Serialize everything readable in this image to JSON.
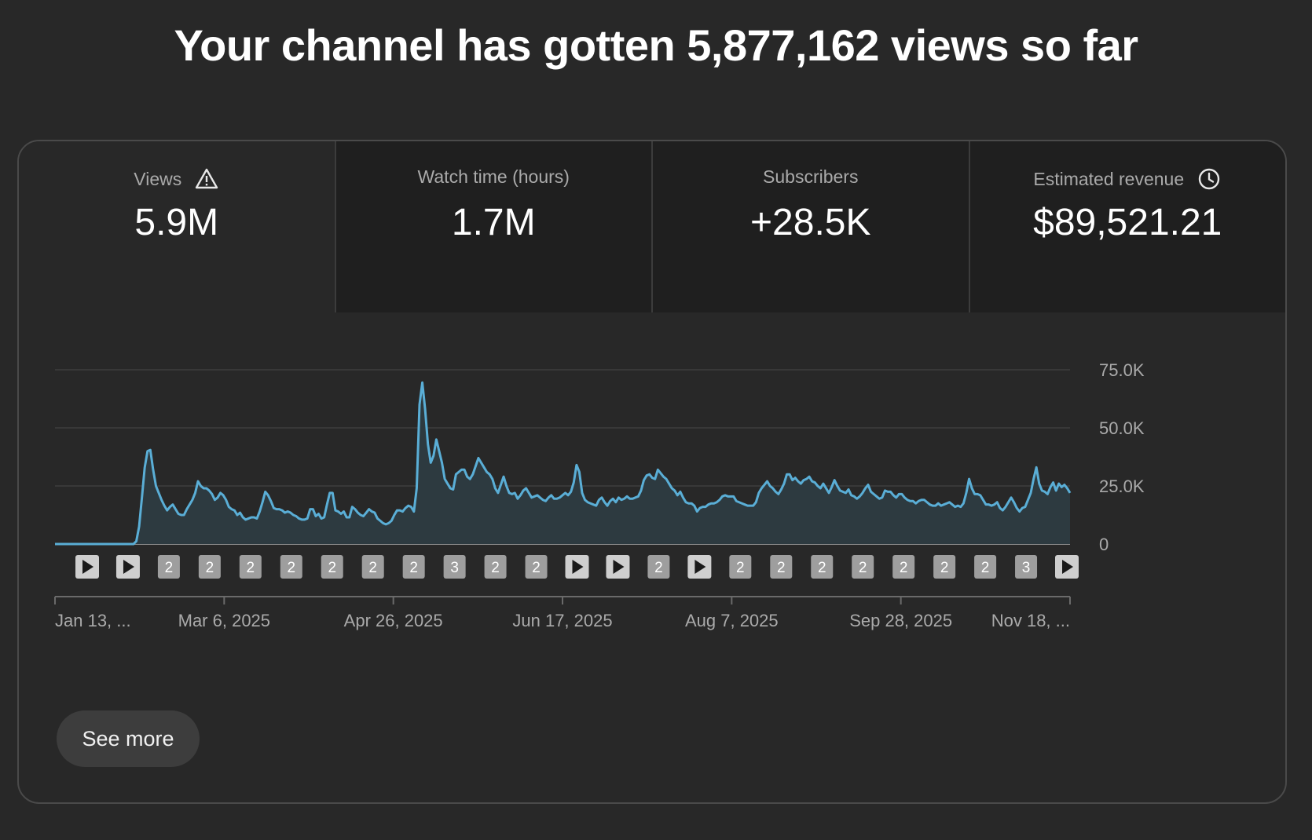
{
  "headline": "Your channel has gotten 5,877,162 views so far",
  "tabs": [
    {
      "label": "Views",
      "value": "5.9M",
      "icon": "warning-icon",
      "selected": true
    },
    {
      "label": "Watch time (hours)",
      "value": "1.7M",
      "icon": null,
      "selected": false
    },
    {
      "label": "Subscribers",
      "value": "+28.5K",
      "icon": null,
      "selected": false
    },
    {
      "label": "Estimated revenue",
      "value": "$89,521.21",
      "icon": "clock-icon",
      "selected": false
    }
  ],
  "see_more_label": "See more",
  "colors": {
    "background": "#282828",
    "line": "#5aaed6",
    "area": "#2d3a40",
    "grid": "#3e3e3e",
    "marker": "#9e9e9e"
  },
  "chart_data": {
    "type": "area",
    "series": [
      {
        "values": [
          0,
          0,
          0,
          0,
          0,
          0,
          0,
          0,
          0,
          0,
          0,
          0,
          0,
          0,
          0,
          0,
          0,
          0,
          0,
          0,
          0,
          0,
          0,
          0,
          0,
          0,
          0,
          0,
          0,
          1200,
          7500,
          20000,
          33000,
          40000,
          40500,
          32000,
          25000,
          22000,
          19000,
          16500,
          14500,
          16000,
          17000,
          15000,
          13000,
          12500,
          12500,
          15000,
          17000,
          19000,
          22000,
          27000,
          25000,
          24000,
          24000,
          23000,
          21500,
          19000,
          20000,
          22000,
          21000,
          19000,
          16000,
          15000,
          14500,
          12500,
          13500,
          11500,
          10500,
          11000,
          11500,
          11500,
          11000,
          14000,
          18000,
          22500,
          21000,
          18500,
          15500,
          15000,
          15000,
          14500,
          13500,
          14000,
          13500,
          12500,
          12000,
          11000,
          10500,
          10500,
          11000,
          15000,
          15000,
          12000,
          13000,
          11000,
          11500,
          17000,
          22000,
          22000,
          14500,
          14000,
          13000,
          14000,
          11500,
          11500,
          16000,
          15000,
          13500,
          12500,
          12000,
          13500,
          15000,
          14000,
          13500,
          11000,
          10000,
          9000,
          8500,
          9000,
          10000,
          12500,
          14500,
          14500,
          14000,
          15500,
          16500,
          16000,
          14000,
          24000,
          60000,
          69500,
          58000,
          43000,
          35000,
          38000,
          45000,
          40000,
          35000,
          28000,
          26000,
          24000,
          23500,
          30000,
          31000,
          32000,
          32000,
          29000,
          28000,
          30000,
          33500,
          37000,
          35000,
          33000,
          31000,
          30000,
          28000,
          24000,
          22000,
          25500,
          29000,
          25000,
          22000,
          21500,
          22000,
          19500,
          21000,
          23000,
          24000,
          22000,
          20000,
          20500,
          21000,
          20000,
          19000,
          18500,
          20000,
          21000,
          19500,
          19500,
          20000,
          21000,
          22000,
          21000,
          22500,
          26500,
          34000,
          31000,
          22000,
          19000,
          18000,
          17500,
          17000,
          16500,
          19000,
          20000,
          18000,
          16500,
          18500,
          19500,
          18000,
          20000,
          19000,
          19500,
          20500,
          19500,
          19500,
          20000,
          20500,
          23000,
          27500,
          29500,
          30000,
          28500,
          28000,
          32000,
          30500,
          29000,
          28000,
          26000,
          24000,
          23000,
          21000,
          22500,
          20000,
          18000,
          17500,
          17500,
          16500,
          14000,
          15500,
          16000,
          16000,
          17000,
          17500,
          17500,
          18000,
          19000,
          20500,
          21000,
          20500,
          20500,
          20500,
          18500,
          18000,
          17500,
          17000,
          16500,
          16500,
          16500,
          18000,
          22000,
          24000,
          25500,
          27000,
          25000,
          24000,
          22500,
          21500,
          23500,
          26000,
          30000,
          30000,
          27500,
          28500,
          27000,
          26000,
          27500,
          28000,
          29000,
          27000,
          26500,
          25000,
          24000,
          26000,
          24000,
          22000,
          24500,
          27500,
          25000,
          23000,
          22500,
          22000,
          23500,
          21000,
          20500,
          19500,
          20500,
          22000,
          24000,
          25500,
          22500,
          21500,
          20500,
          19500,
          20000,
          23000,
          22500,
          22500,
          21000,
          20000,
          21500,
          21500,
          20000,
          19000,
          18500,
          18500,
          17500,
          18500,
          19000,
          19000,
          18000,
          17000,
          16500,
          16500,
          17500,
          16500,
          17000,
          17500,
          18000,
          17000,
          16000,
          16500,
          16000,
          17500,
          22000,
          28000,
          24000,
          21500,
          21500,
          21000,
          19000,
          17000,
          17000,
          16500,
          17000,
          18000,
          15500,
          14500,
          16000,
          18000,
          20000,
          18000,
          15500,
          14000,
          15500,
          16000,
          19000,
          22000,
          28000,
          33000,
          26000,
          23000,
          22500,
          21500,
          24500,
          26500,
          23000,
          26000,
          24500,
          25500,
          24000,
          22000
        ]
      }
    ],
    "x_tick_labels": [
      "Jan 13, ...",
      "Mar 6, 2025",
      "Apr 26, 2025",
      "Jun 17, 2025",
      "Aug 7, 2025",
      "Sep 28, 2025",
      "Nov 18, ..."
    ],
    "y_tick_labels": [
      "0",
      "25.0K",
      "50.0K",
      "75.0K"
    ],
    "ylim": [
      0,
      75000
    ],
    "grid": true,
    "axis_side": "right",
    "markers": [
      {
        "type": "play",
        "label": ""
      },
      {
        "type": "play",
        "label": ""
      },
      {
        "type": "count",
        "label": "2"
      },
      {
        "type": "count",
        "label": "2"
      },
      {
        "type": "count",
        "label": "2"
      },
      {
        "type": "count",
        "label": "2"
      },
      {
        "type": "count",
        "label": "2"
      },
      {
        "type": "count",
        "label": "2"
      },
      {
        "type": "count",
        "label": "2"
      },
      {
        "type": "count",
        "label": "3"
      },
      {
        "type": "count",
        "label": "2"
      },
      {
        "type": "count",
        "label": "2"
      },
      {
        "type": "play",
        "label": ""
      },
      {
        "type": "play",
        "label": ""
      },
      {
        "type": "count",
        "label": "2"
      },
      {
        "type": "play",
        "label": ""
      },
      {
        "type": "count",
        "label": "2"
      },
      {
        "type": "count",
        "label": "2"
      },
      {
        "type": "count",
        "label": "2"
      },
      {
        "type": "count",
        "label": "2"
      },
      {
        "type": "count",
        "label": "2"
      },
      {
        "type": "count",
        "label": "2"
      },
      {
        "type": "count",
        "label": "2"
      },
      {
        "type": "count",
        "label": "3"
      },
      {
        "type": "play",
        "label": ""
      }
    ]
  }
}
